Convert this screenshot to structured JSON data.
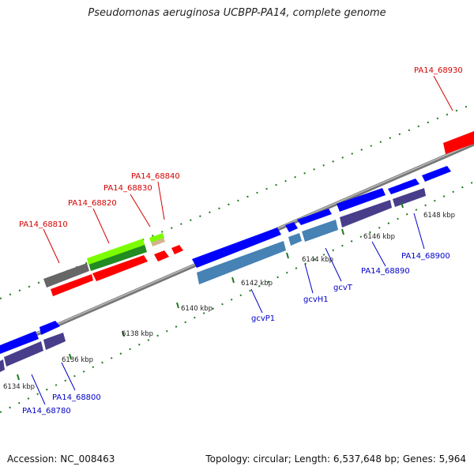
{
  "title": "Pseudomonas aeruginosa UCBPP-PA14, complete genome",
  "footer": {
    "accession": "Accession: NC_008463",
    "meta": "Topology: circular; Length: 6,537,648 bp; Genes: 5,964"
  },
  "ticks": [
    "6134 kbp",
    "6136 kbp",
    "6138 kbp",
    "6140 kbp",
    "6142 kbp",
    "6144 kbp",
    "6146 kbp",
    "6148 kbp"
  ],
  "labels_top": [
    "PA14_68930",
    "PA14_68840",
    "PA14_68830",
    "PA14_68820",
    "PA14_68810"
  ],
  "labels_bottom": [
    "gcvP1",
    "gcvH1",
    "gcvT",
    "PA14_68890",
    "PA14_68900",
    "PA14_68800",
    "PA14_68780"
  ],
  "colors": {
    "red": "#ff0000",
    "blue": "#0000ff",
    "steel": "#4682b4",
    "slate": "#483d8b",
    "gray": "#666666",
    "green": "#228b22",
    "lime": "#7cfc00",
    "tan": "#d2b48c",
    "tick": "#1f7a1f",
    "label_red": "#d40000",
    "label_blue": "#0000c8"
  }
}
